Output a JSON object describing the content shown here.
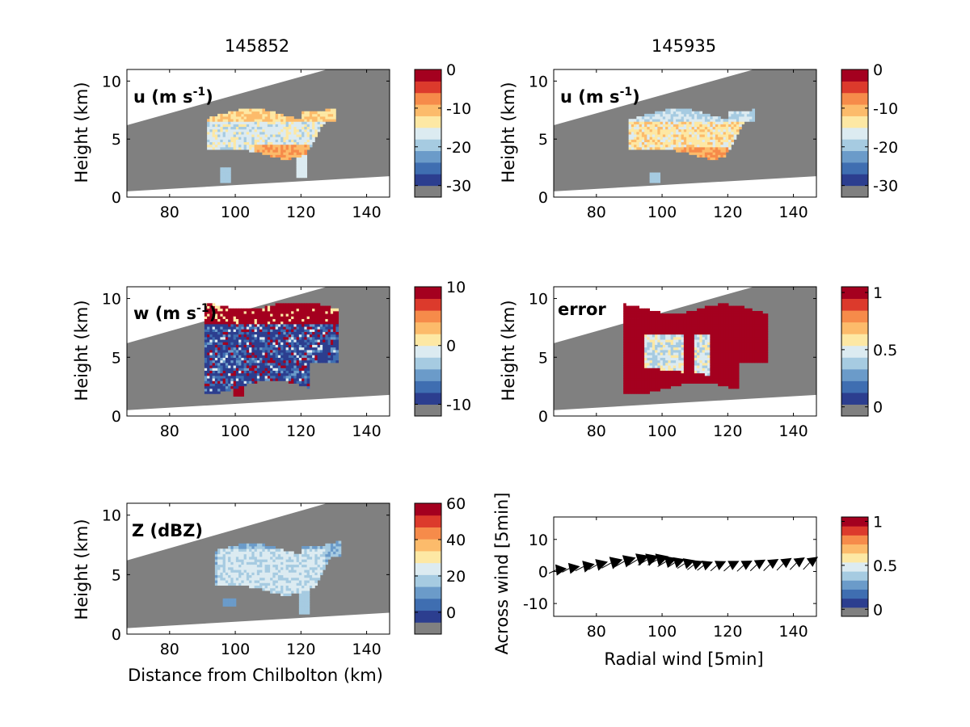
{
  "figure": {
    "column_titles": [
      "145852",
      "145935"
    ]
  },
  "palette": [
    "#808080",
    "#2c3e8f",
    "#3f6eb1",
    "#6b9bc9",
    "#a6cbe1",
    "#dcebf1",
    "#fde8a4",
    "#fcbb6b",
    "#f68b4a",
    "#dc3a2c",
    "#a4001f"
  ],
  "gray": "#808080",
  "chart_data": [
    {
      "id": "u-145852",
      "type": "heatmap",
      "title": "145852",
      "label_main": "u (m s",
      "label_sup": "-1",
      "label_end": ")",
      "ylabel": "Height (km)",
      "xlabel": "",
      "xlim": [
        67,
        147
      ],
      "ylim": [
        0,
        11
      ],
      "xticks": [
        80,
        100,
        120,
        140
      ],
      "yticks": [
        0,
        5,
        10
      ],
      "colorbar": {
        "ticks": [
          0,
          -10,
          -20,
          -30
        ],
        "levels": 10
      },
      "cells_note": "u field",
      "field": "u1"
    },
    {
      "id": "u-145935",
      "type": "heatmap",
      "title": "145935",
      "label_main": "u (m s",
      "label_sup": "-1",
      "label_end": ")",
      "ylabel": "Height (km)",
      "xlabel": "",
      "xlim": [
        67,
        147
      ],
      "ylim": [
        0,
        11
      ],
      "xticks": [
        80,
        100,
        120,
        140
      ],
      "yticks": [
        0,
        5,
        10
      ],
      "colorbar": {
        "ticks": [
          0,
          -10,
          -20,
          -30
        ],
        "levels": 10
      },
      "field": "u2"
    },
    {
      "id": "w-145852",
      "type": "heatmap",
      "title": "",
      "label_main": "w (m s",
      "label_sup": "-1",
      "label_end": ")",
      "ylabel": "Height (km)",
      "xlabel": "",
      "xlim": [
        67,
        147
      ],
      "ylim": [
        0,
        11
      ],
      "xticks": [
        80,
        100,
        120,
        140
      ],
      "yticks": [
        0,
        5,
        10
      ],
      "colorbar": {
        "ticks": [
          10,
          0,
          -10
        ],
        "levels": 10
      },
      "field": "w"
    },
    {
      "id": "error-145935",
      "type": "heatmap",
      "title": "",
      "label_main": "error",
      "label_sup": "",
      "label_end": "",
      "ylabel": "Height (km)",
      "xlabel": "",
      "xlim": [
        67,
        147
      ],
      "ylim": [
        0,
        11
      ],
      "xticks": [
        80,
        100,
        120,
        140
      ],
      "yticks": [
        0,
        5,
        10
      ],
      "colorbar": {
        "ticks": [
          1,
          0.5,
          0
        ],
        "levels": 10
      },
      "field": "err"
    },
    {
      "id": "z-145852",
      "type": "heatmap",
      "title": "",
      "label_main": "Z (dBZ)",
      "label_sup": "",
      "label_end": "",
      "ylabel": "Height (km)",
      "xlabel": "Distance from Chilbolton (km)",
      "xlim": [
        67,
        147
      ],
      "ylim": [
        0,
        11
      ],
      "xticks": [
        80,
        100,
        120,
        140
      ],
      "yticks": [
        0,
        5,
        10
      ],
      "colorbar": {
        "ticks": [
          60,
          40,
          20,
          0
        ],
        "levels": 10
      },
      "field": "z"
    },
    {
      "id": "wind-vectors",
      "type": "quiver",
      "ylabel": "Across wind [5min]",
      "xlabel": "Radial wind [5min]",
      "xlim": [
        67,
        147
      ],
      "ylim": [
        -14,
        17
      ],
      "xticks": [
        80,
        100,
        120,
        140
      ],
      "yticks": [
        10,
        0,
        -10
      ],
      "colorbar": {
        "ticks": [
          1,
          0.5,
          0
        ],
        "levels": 10
      },
      "arrows": [
        {
          "x": 68,
          "y": 0.5,
          "u": 3,
          "v": 0.4
        },
        {
          "x": 72,
          "y": 1.0,
          "u": 3,
          "v": 0.6
        },
        {
          "x": 76,
          "y": 1.5,
          "u": 3.5,
          "v": 0.8
        },
        {
          "x": 80,
          "y": 2.0,
          "u": 3.5,
          "v": 1.0
        },
        {
          "x": 84,
          "y": 2.5,
          "u": 4,
          "v": 1.2
        },
        {
          "x": 88,
          "y": 3.0,
          "u": 4,
          "v": 1.3
        },
        {
          "x": 92,
          "y": 3.5,
          "u": 4,
          "v": 1.4
        },
        {
          "x": 95,
          "y": 3.5,
          "u": 4,
          "v": 1.3
        },
        {
          "x": 98,
          "y": 3.5,
          "u": 4,
          "v": 1.2
        },
        {
          "x": 101,
          "y": 3.0,
          "u": 3.5,
          "v": 1.1
        },
        {
          "x": 104,
          "y": 2.8,
          "u": 3,
          "v": 1.0
        },
        {
          "x": 107,
          "y": 2.5,
          "u": 3,
          "v": 1.0
        },
        {
          "x": 110,
          "y": 2.2,
          "u": 2.5,
          "v": 1.0
        },
        {
          "x": 113,
          "y": 2.0,
          "u": 2.5,
          "v": 1.0
        },
        {
          "x": 117,
          "y": 2.0,
          "u": 2.5,
          "v": 1.2
        },
        {
          "x": 121,
          "y": 2.0,
          "u": 2.5,
          "v": 1.3
        },
        {
          "x": 125,
          "y": 2.0,
          "u": 2.5,
          "v": 1.4
        },
        {
          "x": 129,
          "y": 2.2,
          "u": 2.5,
          "v": 1.5
        },
        {
          "x": 133,
          "y": 2.3,
          "u": 2.5,
          "v": 1.6
        },
        {
          "x": 137,
          "y": 2.5,
          "u": 2.5,
          "v": 1.7
        },
        {
          "x": 141,
          "y": 2.7,
          "u": 2.5,
          "v": 1.7
        },
        {
          "x": 145,
          "y": 2.8,
          "u": 2.5,
          "v": 1.8
        }
      ]
    }
  ]
}
